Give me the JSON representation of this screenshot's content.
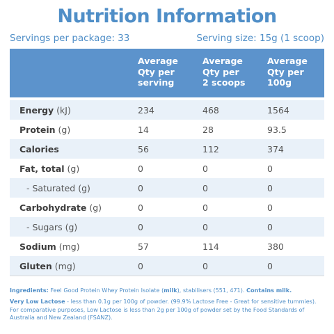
{
  "title": "Nutrition Information",
  "servings_per_package": "Servings per package: 33",
  "serving_size": "Serving size: 15g (1 scoop)",
  "columns": [
    "Average\nQty per\nserving",
    "Average\nQty per\n2 scoops",
    "Average\nQty per\n100g"
  ],
  "rows": [
    {
      "name": "Energy",
      "unit": " (kJ)",
      "sub": false,
      "shade": true,
      "values": [
        "234",
        "468",
        "1564"
      ]
    },
    {
      "name": "Protein",
      "unit": " (g)",
      "sub": false,
      "shade": false,
      "values": [
        "14",
        "28",
        "93.5"
      ]
    },
    {
      "name": "Calories",
      "unit": "",
      "sub": false,
      "shade": true,
      "values": [
        "56",
        "112",
        "374"
      ]
    },
    {
      "name": "Fat, total",
      "unit": " (g)",
      "sub": false,
      "shade": false,
      "values": [
        "0",
        "0",
        "0"
      ]
    },
    {
      "name": "- Saturated",
      "unit": " (g)",
      "sub": true,
      "shade": true,
      "values": [
        "0",
        "0",
        "0"
      ]
    },
    {
      "name": "Carbohydrate",
      "unit": " (g)",
      "sub": false,
      "shade": false,
      "values": [
        "0",
        "0",
        "0"
      ]
    },
    {
      "name": "- Sugars",
      "unit": " (g)",
      "sub": true,
      "shade": true,
      "values": [
        "0",
        "0",
        "0"
      ]
    },
    {
      "name": "Sodium",
      "unit": " (mg)",
      "sub": false,
      "shade": false,
      "values": [
        "57",
        "114",
        "380"
      ]
    },
    {
      "name": "Gluten",
      "unit": " (mg)",
      "sub": false,
      "shade": true,
      "values": [
        "0",
        "0",
        "0"
      ]
    }
  ],
  "notes": {
    "ingredients_label": "Ingredients:",
    "ingredients_a": " Feel Good Protein Whey Protein Isolate (",
    "ingredients_milk": "milk",
    "ingredients_b": "), stabilisers (551, 471). ",
    "contains_milk": "Contains milk.",
    "lactose_label": "Very Low Lactose",
    "lactose_text": " - less than 0.1g per 100g of powder. (99.9% Lactose Free - Great for sensitive tummies). For comparative purposes, Low Lactose is less than 2g per 100g of powder set by the Food Standards of Australia and New Zealand (FSANZ)."
  },
  "colors": {
    "accent": "#4f8ec7",
    "header_bg": "#5c93cc",
    "row_shade": "#e9f1f9"
  }
}
